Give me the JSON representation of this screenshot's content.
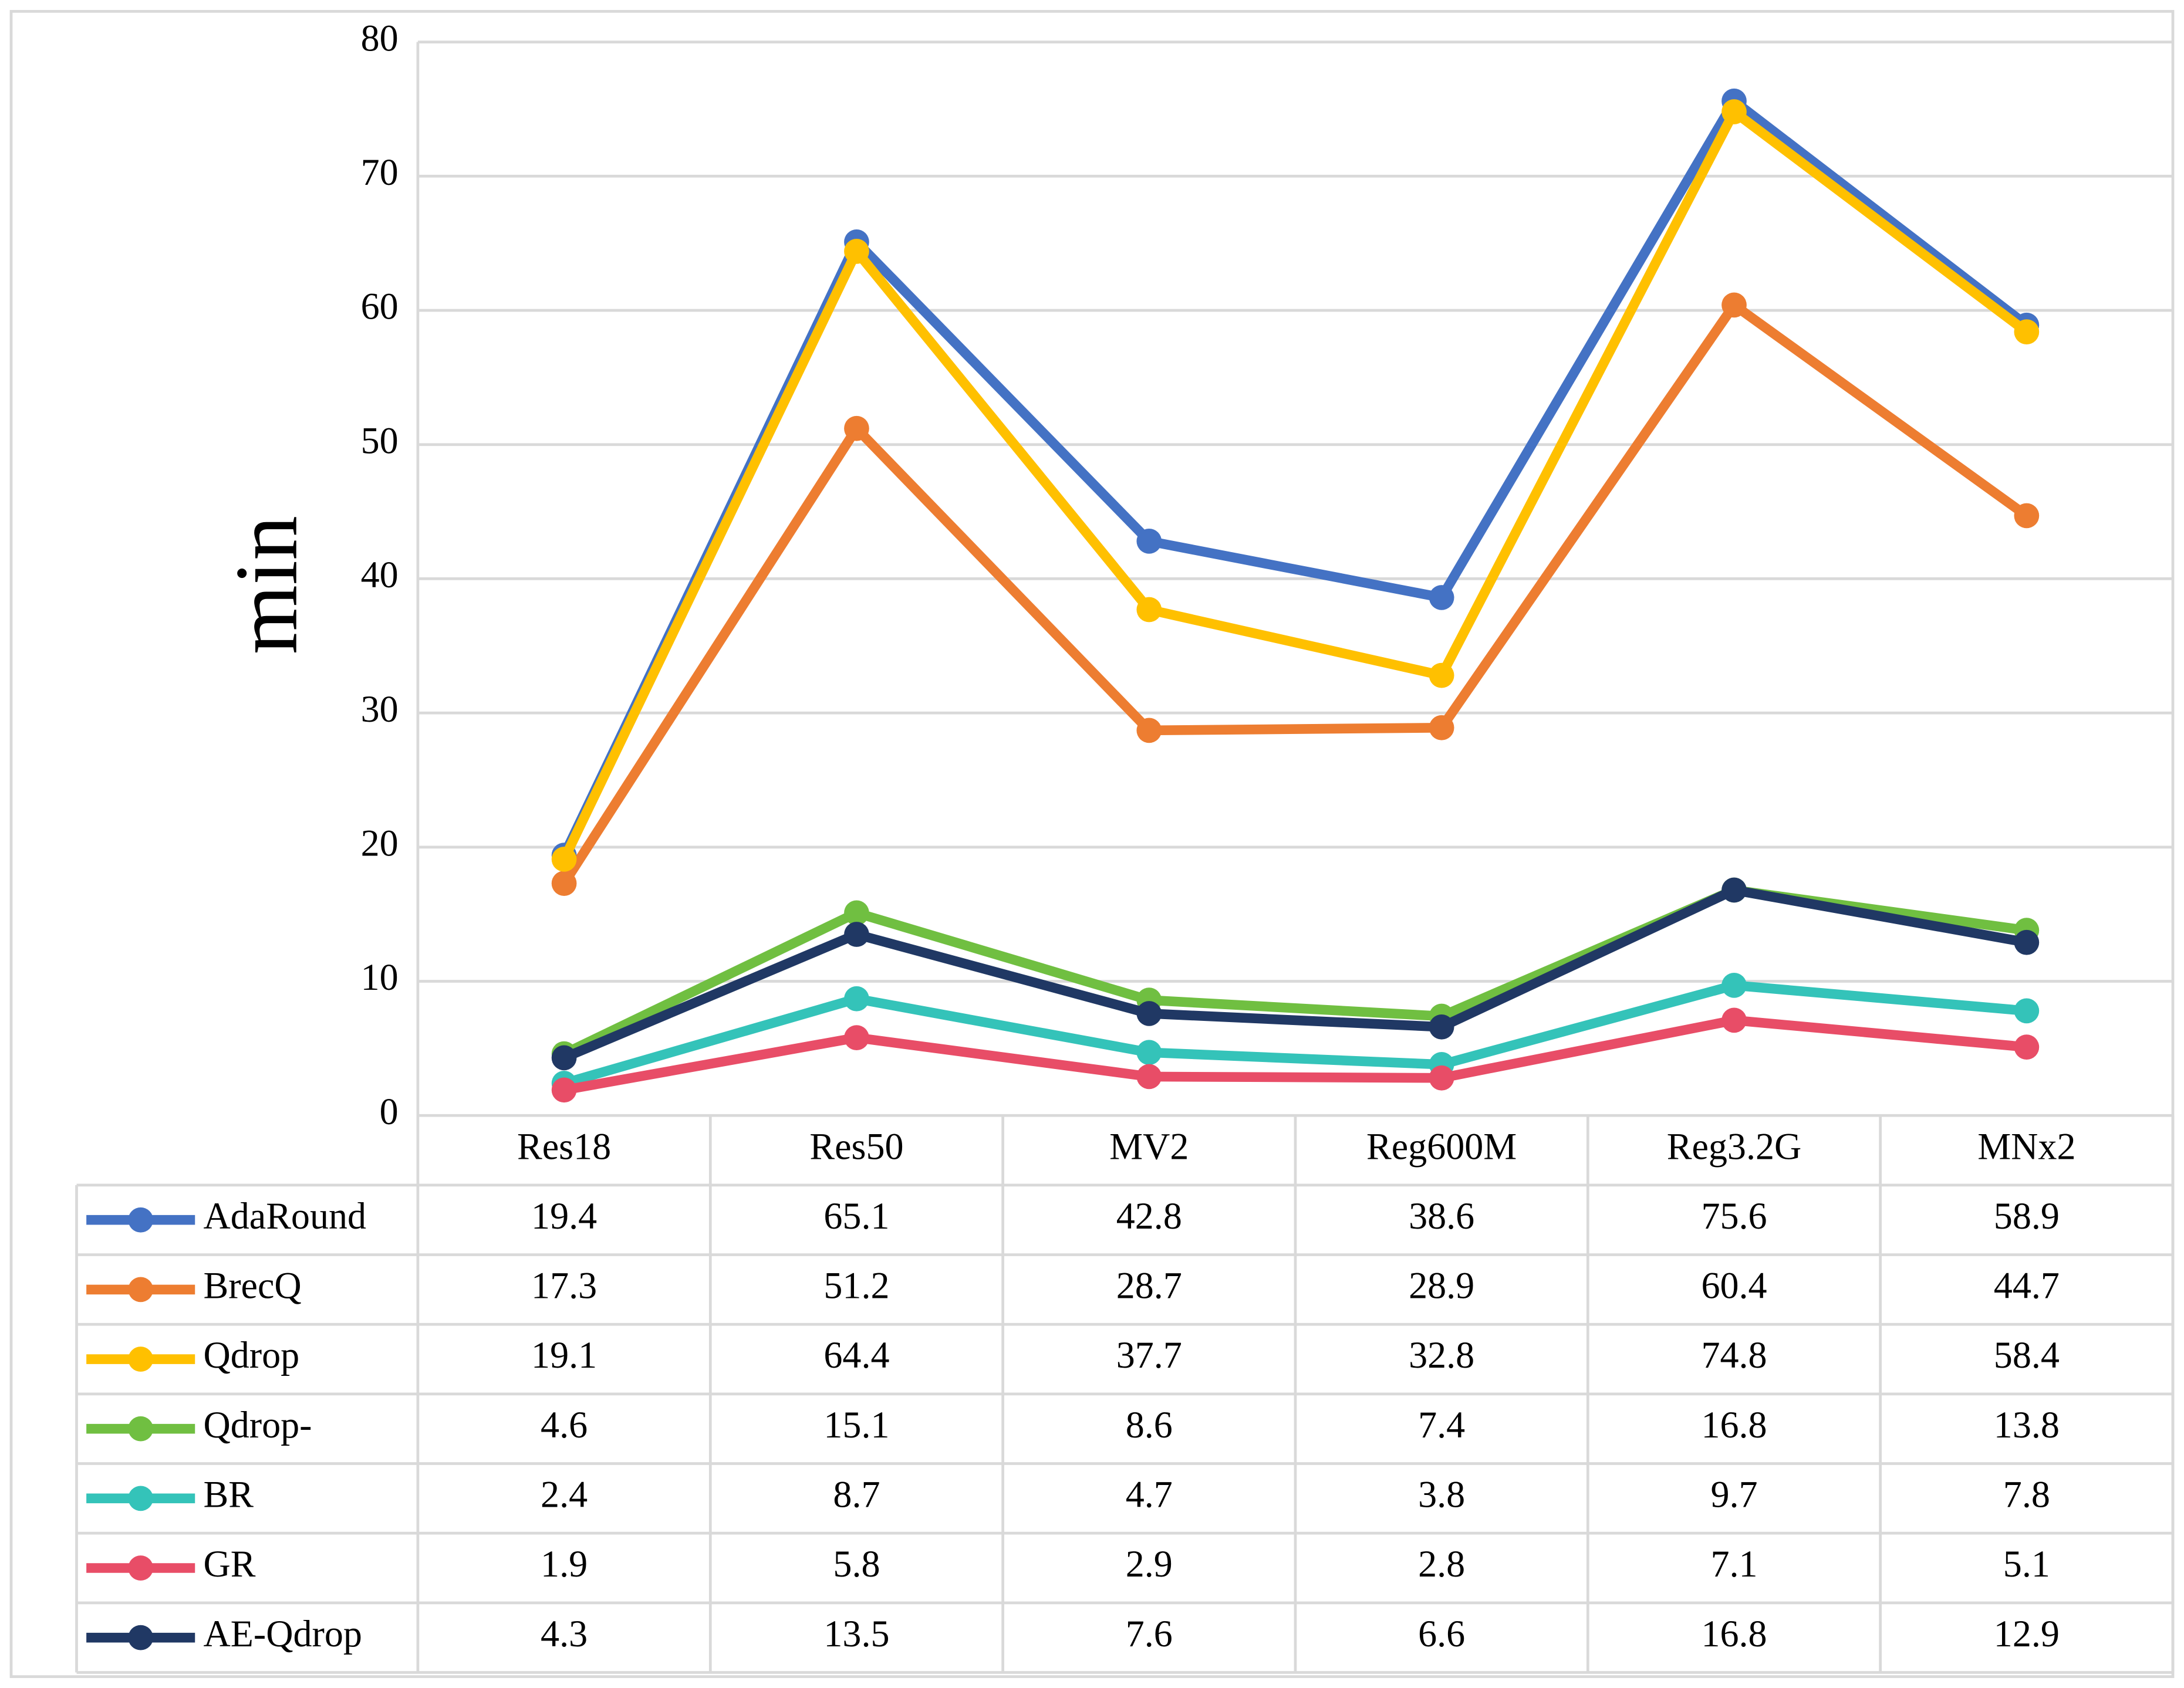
{
  "chart_data": {
    "type": "line",
    "y_label": "min",
    "categories": [
      "Res18",
      "Res50",
      "MV2",
      "Reg600M",
      "Reg3.2G",
      "MNx2"
    ],
    "ylim": [
      0,
      80
    ],
    "yticks": [
      0,
      10,
      20,
      30,
      40,
      50,
      60,
      70,
      80
    ],
    "grid": true,
    "series": [
      {
        "name": "AdaRound",
        "color": "#4472c4",
        "values": [
          19.4,
          65.1,
          42.8,
          38.6,
          75.6,
          58.9
        ]
      },
      {
        "name": "BrecQ",
        "color": "#ed7d31",
        "values": [
          17.3,
          51.2,
          28.7,
          28.9,
          60.4,
          44.7
        ]
      },
      {
        "name": "Qdrop",
        "color": "#ffc000",
        "values": [
          19.1,
          64.4,
          37.7,
          32.8,
          74.8,
          58.4
        ]
      },
      {
        "name": "Qdrop-",
        "color": "#70bf41",
        "values": [
          4.6,
          15.1,
          8.6,
          7.4,
          16.8,
          13.8
        ]
      },
      {
        "name": "BR",
        "color": "#34c3b9",
        "values": [
          2.4,
          8.7,
          4.7,
          3.8,
          9.7,
          7.8
        ]
      },
      {
        "name": "GR",
        "color": "#e84d67",
        "values": [
          1.9,
          5.8,
          2.9,
          2.8,
          7.1,
          5.1
        ]
      },
      {
        "name": "AE-Qdrop",
        "color": "#203864",
        "values": [
          4.3,
          13.5,
          7.6,
          6.6,
          16.8,
          12.9
        ]
      }
    ]
  }
}
